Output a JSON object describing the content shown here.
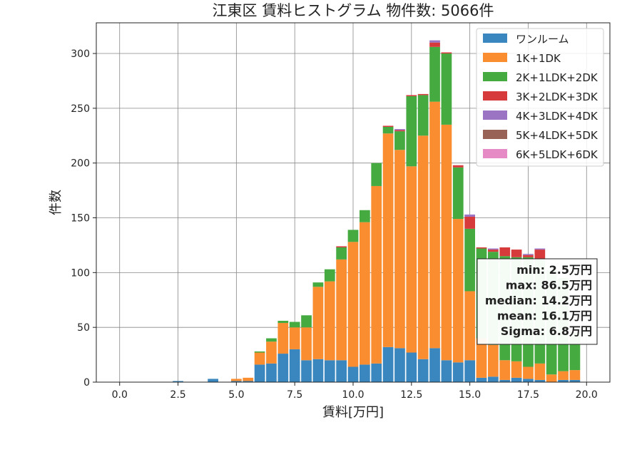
{
  "chart_data": {
    "type": "bar",
    "stacked": true,
    "title": "江東区 賃料ヒストグラム  物件数: 5066件",
    "xlabel": "賃料[万円]",
    "ylabel": "件数",
    "xlim": [
      -1.0,
      21.0
    ],
    "ylim": [
      0,
      328
    ],
    "x_ticks": [
      0.0,
      2.5,
      5.0,
      7.5,
      10.0,
      12.5,
      15.0,
      17.5,
      20.0
    ],
    "x_tick_labels": [
      "0.0",
      "2.5",
      "5.0",
      "7.5",
      "10.0",
      "12.5",
      "15.0",
      "17.5",
      "20.0"
    ],
    "y_ticks": [
      0,
      50,
      100,
      150,
      200,
      250,
      300
    ],
    "y_tick_labels": [
      "0",
      "50",
      "100",
      "150",
      "200",
      "250",
      "300"
    ],
    "grid": true,
    "legend_position": "top-right",
    "bin_width": 0.5,
    "x": [
      2.5,
      4.0,
      5.0,
      5.5,
      6.0,
      6.5,
      7.0,
      7.5,
      8.0,
      8.5,
      9.0,
      9.5,
      10.0,
      10.5,
      11.0,
      11.5,
      12.0,
      12.5,
      13.0,
      13.5,
      14.0,
      14.5,
      15.0,
      15.5,
      16.0,
      16.5,
      17.0,
      17.5,
      18.0,
      18.5,
      19.0,
      19.5
    ],
    "series": [
      {
        "name": "ワンルーム",
        "color": "#3a87bf",
        "values": [
          1,
          3,
          1,
          1,
          16,
          17,
          26,
          30,
          20,
          21,
          20,
          20,
          14,
          16,
          17,
          32,
          31,
          27,
          21,
          31,
          20,
          18,
          20,
          4,
          5,
          2,
          4,
          3,
          2,
          0,
          2,
          2
        ]
      },
      {
        "name": "1K+1DK",
        "color": "#fa8d2f",
        "values": [
          0,
          0,
          2,
          3,
          11,
          20,
          28,
          20,
          30,
          66,
          72,
          92,
          114,
          130,
          162,
          195,
          181,
          170,
          204,
          225,
          215,
          131,
          63,
          36,
          29,
          18,
          15,
          11,
          15,
          7,
          8,
          9
        ]
      },
      {
        "name": "2K+1LDK+2DK",
        "color": "#45aa40",
        "values": [
          0,
          0,
          0,
          0,
          1,
          3,
          2,
          5,
          11,
          4,
          11,
          11,
          11,
          11,
          21,
          6,
          17,
          64,
          37,
          50,
          65,
          47,
          57,
          82,
          85,
          95,
          95,
          100,
          95,
          95,
          85,
          35
        ]
      },
      {
        "name": "3K+2LDK+3DK",
        "color": "#d63a3b",
        "values": [
          0,
          0,
          0,
          0,
          0,
          0,
          0,
          0,
          0,
          0,
          0,
          1,
          0,
          0,
          0,
          1,
          1,
          1,
          1,
          4,
          1,
          2,
          11,
          1,
          2,
          8,
          7,
          2,
          9,
          0,
          0,
          0
        ]
      },
      {
        "name": "4K+3LDK+4DK",
        "color": "#9b74c4",
        "values": [
          0,
          0,
          0,
          0,
          0,
          0,
          0,
          0,
          0,
          0,
          0,
          0,
          0,
          0,
          0,
          0,
          1,
          0,
          0,
          2,
          0,
          0,
          2,
          0,
          1,
          0,
          0,
          1,
          1,
          0,
          0,
          0
        ]
      },
      {
        "name": "5K+4LDK+5DK",
        "color": "#996257",
        "values": [
          0,
          0,
          0,
          0,
          0,
          0,
          0,
          0,
          0,
          0,
          0,
          0,
          0,
          0,
          0,
          0,
          0,
          0,
          0,
          0,
          0,
          0,
          0,
          0,
          0,
          0,
          0,
          0,
          0,
          0,
          0,
          0
        ]
      },
      {
        "name": "6K+5LDK+6DK",
        "color": "#e58ac4",
        "values": [
          0,
          0,
          0,
          0,
          0,
          0,
          0,
          0,
          0,
          0,
          0,
          0,
          0,
          0,
          0,
          0,
          0,
          0,
          0,
          0,
          0,
          0,
          0,
          0,
          0,
          0,
          0,
          0,
          0,
          0,
          0,
          0
        ]
      }
    ],
    "stats_box": [
      "min: 2.5万円",
      "max: 86.5万円",
      "median: 14.2万円",
      "mean: 16.1万円",
      "Sigma: 6.8万円"
    ]
  }
}
